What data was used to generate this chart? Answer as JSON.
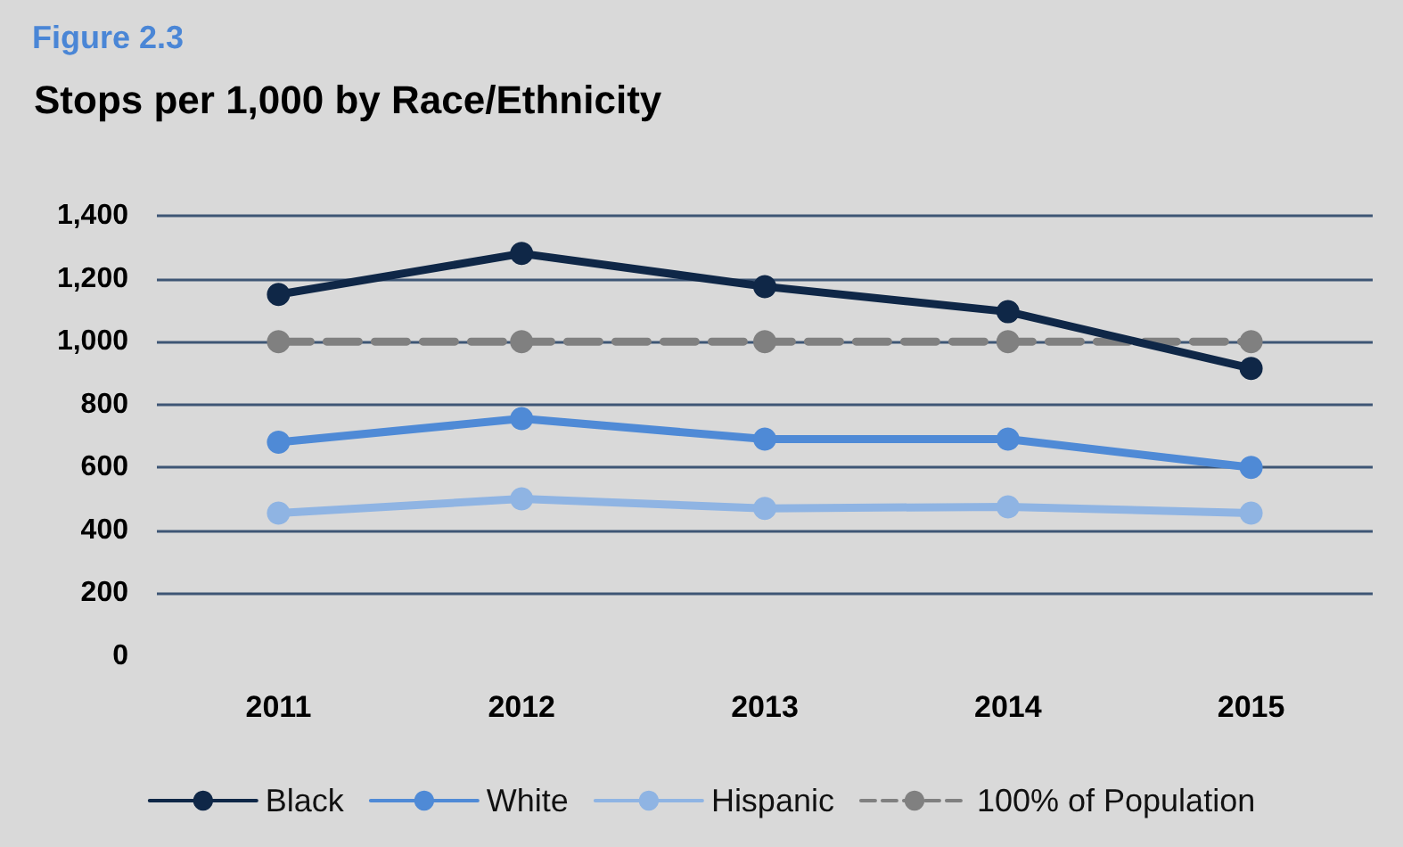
{
  "chart_data": {
    "type": "line",
    "title": "Stops per 1,000 by Race/Ethnicity",
    "annotations": [
      "Figure 2.3"
    ],
    "categories": [
      "2011",
      "2012",
      "2013",
      "2014",
      "2015"
    ],
    "series": [
      {
        "name": "Black",
        "color": "#0f2747",
        "values": [
          1150,
          1280,
          1175,
          1095,
          915
        ]
      },
      {
        "name": "White",
        "color": "#4f8ad6",
        "values": [
          680,
          755,
          690,
          690,
          600
        ]
      },
      {
        "name": "Hispanic",
        "color": "#8fb4e3",
        "values": [
          455,
          500,
          470,
          475,
          455
        ]
      },
      {
        "name": "100% of Population",
        "color": "#808080",
        "values": [
          1000,
          1000,
          1000,
          1000,
          1000
        ],
        "line_style": "dashed"
      }
    ],
    "ylim": [
      0,
      1400
    ],
    "yticks": [
      0,
      200,
      400,
      600,
      800,
      {
        "value": 1000,
        "label": "1,000"
      },
      {
        "value": 1200,
        "label": "1,200"
      },
      {
        "value": 1400,
        "label": "1,400"
      }
    ],
    "grid": "y",
    "legend": "bottom",
    "marker": "circle",
    "line_style": "solid"
  }
}
